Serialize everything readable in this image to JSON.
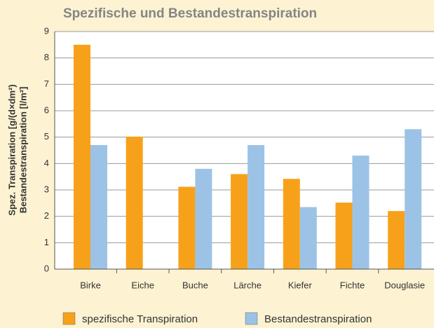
{
  "chart_data": {
    "type": "bar",
    "title": "Spezifische und Bestandestranspiration",
    "y_label": [
      "Spez. Transpiration [g/(d×dm²)",
      "Bestandestranspiration [l/m²]"
    ],
    "categories": [
      "Birke",
      "Eiche",
      "Buche",
      "Lärche",
      "Kiefer",
      "Fichte",
      "Douglasie"
    ],
    "series": [
      {
        "name": "spezifische Transpiration",
        "color": "#f7a11a",
        "values": [
          8.5,
          5.02,
          3.12,
          3.6,
          3.42,
          2.52,
          2.2
        ]
      },
      {
        "name": "Bestandestranspiration",
        "color": "#9cc3e6",
        "values": [
          4.7,
          null,
          3.8,
          4.7,
          2.35,
          4.3,
          5.3
        ]
      }
    ],
    "ylim": [
      0,
      9
    ],
    "yticks": [
      0,
      1,
      2,
      3,
      4,
      5,
      6,
      7,
      8,
      9
    ],
    "grid": true
  }
}
